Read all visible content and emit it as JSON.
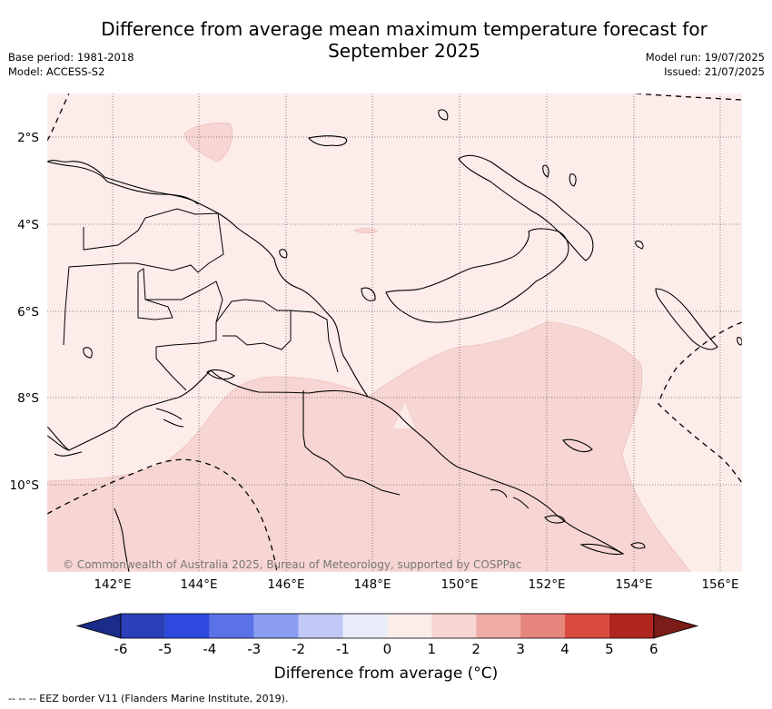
{
  "title_line1": "Difference from average mean maximum temperature forecast for",
  "title_line2": "September 2025",
  "base_period": "Base period: 1981-2018",
  "model": "Model: ACCESS-S2",
  "model_run": "Model run: 19/07/2025",
  "issued": "Issued: 21/07/2025",
  "credit": "© Commonwealth of Australia 2025, Bureau of Meteorology, supported by COSPPac",
  "footnote": "-- -- -- EEZ border V11 (Flanders Marine Institute, 2019).",
  "colorbar": {
    "title": "Difference from average (°C)",
    "ticks": [
      "-6",
      "-5",
      "-4",
      "-3",
      "-2",
      "-1",
      "0",
      "1",
      "2",
      "3",
      "4",
      "5",
      "6"
    ],
    "colors": [
      "#1b2b8a",
      "#2a40b8",
      "#2e4ade",
      "#5a72e6",
      "#8a9df0",
      "#c0c9f5",
      "#e8ecfb",
      "#fcecea",
      "#f6d5d2",
      "#f0aca6",
      "#e6857c",
      "#d94b3f",
      "#b0261e",
      "#7a1c17"
    ]
  },
  "map": {
    "lat_labels": [
      "2°S",
      "4°S",
      "6°S",
      "8°S",
      "10°S"
    ],
    "lon_labels": [
      "142°E",
      "144°E",
      "146°E",
      "148°E",
      "150°E",
      "152°E",
      "154°E",
      "156°E"
    ],
    "background_class": "0 to 1",
    "anomaly_zones": [
      "1 to 2"
    ]
  }
}
